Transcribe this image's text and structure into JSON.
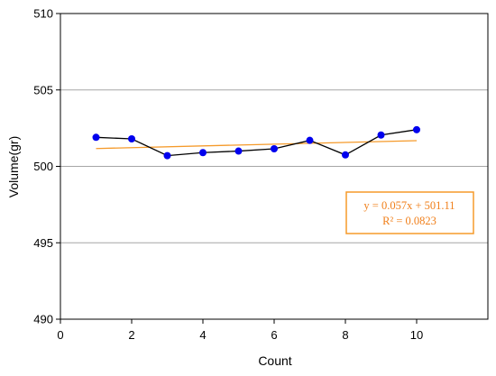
{
  "chart_data": {
    "type": "scatter",
    "title": "",
    "xlabel": "Count",
    "ylabel": "Volume(gr)",
    "xlim": [
      0,
      12
    ],
    "ylim": [
      490,
      510
    ],
    "x_ticks": [
      0,
      2,
      4,
      6,
      8,
      10
    ],
    "y_ticks": [
      490,
      495,
      500,
      505,
      510
    ],
    "x_tick_labels": [
      "0",
      "2",
      "4",
      "6",
      "8",
      "10"
    ],
    "y_tick_labels": [
      "490",
      "495",
      "500",
      "505",
      "510"
    ],
    "grid": "horizontal",
    "series": [
      {
        "x": [
          1,
          2,
          3,
          4,
          5,
          6,
          7,
          8,
          9,
          10
        ],
        "y": [
          501.9,
          501.8,
          500.7,
          500.9,
          501.0,
          501.15,
          501.7,
          500.75,
          502.05,
          502.4
        ],
        "color": "#0000ee",
        "line_color": "#000000"
      }
    ],
    "trendline": {
      "type": "linear",
      "slope": 0.057,
      "intercept": 501.11,
      "x_range": [
        1,
        10
      ],
      "color": "#f59a2a"
    },
    "annotation": {
      "equation": "y = 0.057x + 501.11",
      "r_squared": "R² = 0.0823",
      "color": "#f07f1a"
    }
  }
}
